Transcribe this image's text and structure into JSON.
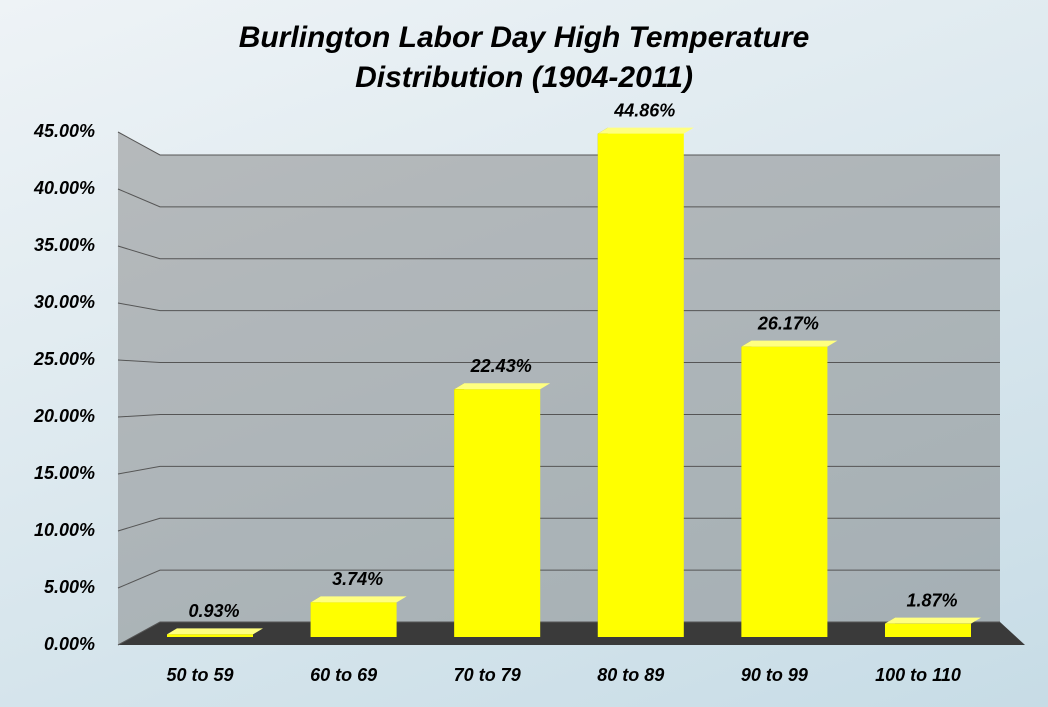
{
  "chart_data": {
    "type": "bar3d",
    "title": "Burlington Labor Day High Temperature Distribution (1904-2011)",
    "categories": [
      "50 to 59",
      "60 to 69",
      "70 to 79",
      "80 to 89",
      "90 to 99",
      "100 to 110"
    ],
    "values": [
      0.93,
      3.74,
      22.43,
      44.86,
      26.17,
      1.87
    ],
    "value_labels": [
      "0.93%",
      "3.74%",
      "22.43%",
      "44.86%",
      "26.17%",
      "1.87%"
    ],
    "color": "#ffff00",
    "ylim": [
      0,
      45
    ],
    "yticks": [
      {
        "value": 0,
        "label": "0.00%"
      },
      {
        "value": 5,
        "label": "5.00%"
      },
      {
        "value": 10,
        "label": "10.00%"
      },
      {
        "value": 15,
        "label": "15.00%"
      },
      {
        "value": 20,
        "label": "20.00%"
      },
      {
        "value": 25,
        "label": "25.00%"
      },
      {
        "value": 30,
        "label": "30.00%"
      },
      {
        "value": 35,
        "label": "35.00%"
      },
      {
        "value": 40,
        "label": "40.00%"
      },
      {
        "value": 45,
        "label": "45.00%"
      }
    ],
    "grid": true
  }
}
